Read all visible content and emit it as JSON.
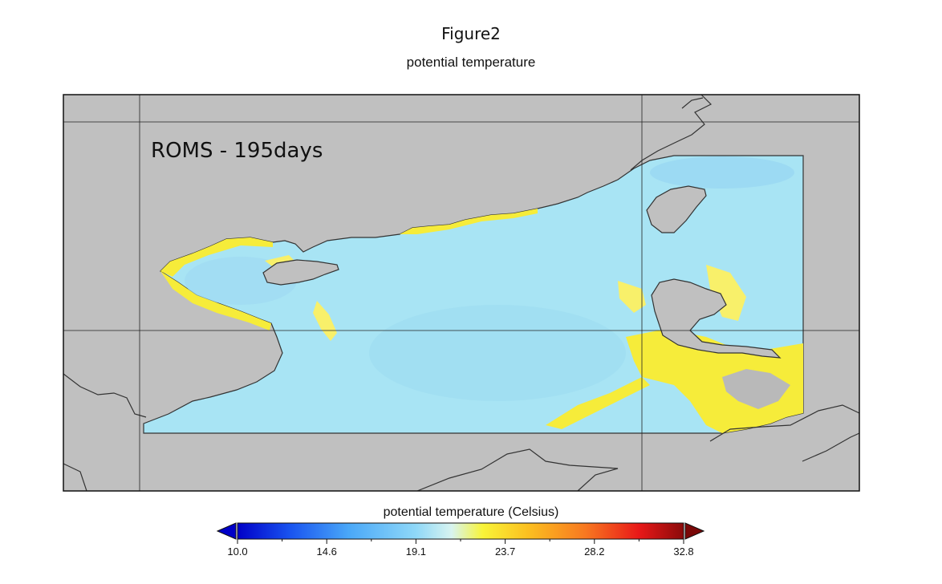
{
  "figure": {
    "title": "Figure2",
    "subtitle": "potential temperature",
    "model_label": "ROMS -  195days"
  },
  "map": {
    "land_color": "#c0c0c0",
    "ocean_color": "#a8e4f4",
    "coast_warm_color": "#f6ec3a",
    "coast_hot_color": "#f5c800",
    "coastline_color": "#333333"
  },
  "colorbar": {
    "label": "potential temperature (Celsius)",
    "min": 10.0,
    "max": 32.8,
    "ticks": [
      "10.0",
      "14.6",
      "19.1",
      "23.7",
      "28.2",
      "32.8"
    ],
    "colors": [
      "#0000c8",
      "#1a55f0",
      "#4aa8f8",
      "#8fd8f8",
      "#d8f4f0",
      "#f8f438",
      "#fbc020",
      "#f87820",
      "#e81818",
      "#8a0a0a"
    ]
  }
}
